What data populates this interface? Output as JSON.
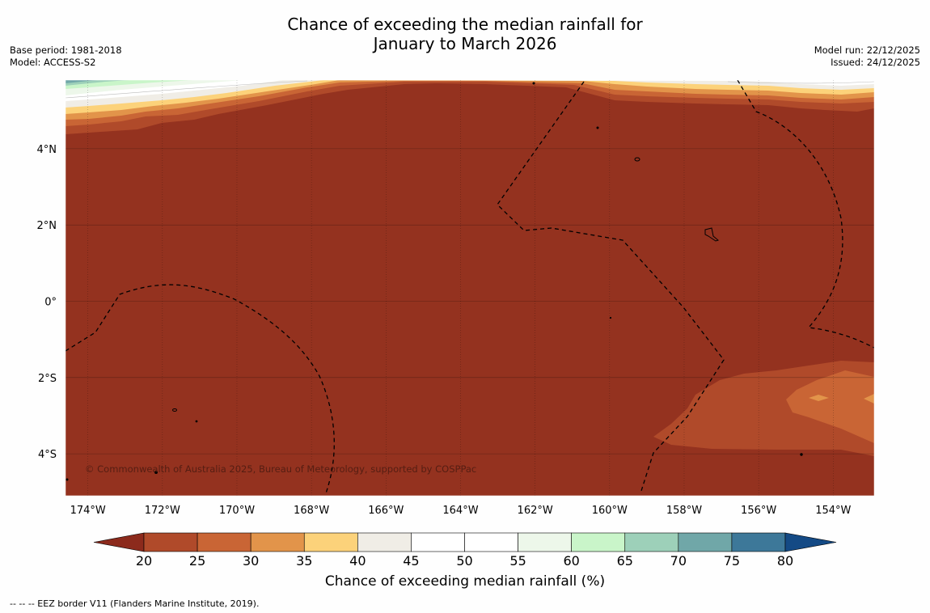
{
  "title": {
    "line1": "Chance of exceeding the median rainfall for",
    "line2": "January to March 2026"
  },
  "meta_left": {
    "base_period": "Base period: 1981-2018",
    "model": "Model: ACCESS-S2"
  },
  "meta_right": {
    "model_run": "Model run: 22/12/2025",
    "issued": "Issued: 24/12/2025"
  },
  "map": {
    "region": "Central Pacific",
    "lon_range": [
      -174.6,
      -152.9
    ],
    "lat_range": [
      -5.1,
      5.8
    ],
    "lon_ticks": [
      "174°W",
      "172°W",
      "170°W",
      "168°W",
      "166°W",
      "164°W",
      "162°W",
      "160°W",
      "158°W",
      "156°W",
      "154°W"
    ],
    "lat_ticks": [
      "4°N",
      "2°N",
      "0°",
      "2°S",
      "4°S"
    ],
    "copyright": "© Commonwealth of Australia 2025, Bureau of Meteorology, supported by COSPPac"
  },
  "colorbar": {
    "label": "Chance of exceeding median rainfall (%)",
    "ticks": [
      "20",
      "25",
      "30",
      "35",
      "40",
      "45",
      "50",
      "55",
      "60",
      "65",
      "70",
      "75",
      "80"
    ],
    "colors": {
      "below_20": "#8c2a1c",
      "c20_25": "#b04a2a",
      "c25_30": "#c96535",
      "c30_35": "#e2944a",
      "c35_40": "#fcd27a",
      "c40_45": "#f0ede6",
      "c45_50": "#ffffff",
      "c50_55": "#ffffff",
      "c55_60": "#edf7ea",
      "c60_65": "#c9f5c9",
      "c65_70": "#9dd0b9",
      "c70_75": "#70a7a8",
      "c75_80": "#3d7899",
      "above_80": "#144a85"
    }
  },
  "footnote": "--  --  -- EEZ border V11 (Flanders Marine Institute, 2019)."
}
